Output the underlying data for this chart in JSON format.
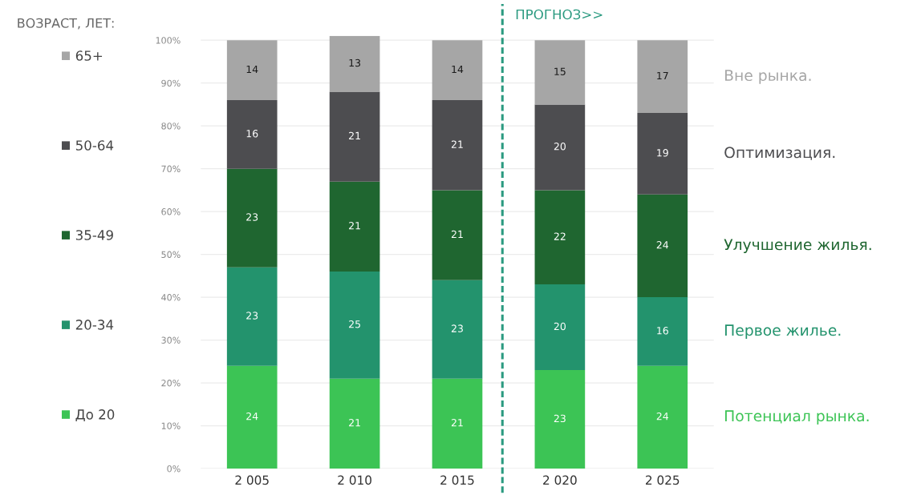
{
  "chart_data": {
    "type": "bar",
    "stacked": true,
    "x": [
      2005,
      2010,
      2015,
      2020,
      2025
    ],
    "xlim": [
      2002.5,
      2027.5
    ],
    "xticks": [
      {
        "value": 2005,
        "label": "2 005"
      },
      {
        "value": 2010,
        "label": "2 010"
      },
      {
        "value": 2015,
        "label": "2 015"
      },
      {
        "value": 2020,
        "label": "2 020"
      },
      {
        "value": 2025,
        "label": "2 025"
      }
    ],
    "series": [
      {
        "name": "До 20",
        "color": "#3cc455",
        "values": [
          24,
          21,
          21,
          23,
          24
        ]
      },
      {
        "name": "20-34",
        "color": "#23936d",
        "values": [
          23,
          25,
          23,
          20,
          16
        ]
      },
      {
        "name": "35-49",
        "color": "#1f6630",
        "values": [
          23,
          21,
          21,
          22,
          24
        ]
      },
      {
        "name": "50-64",
        "color": "#4d4d50",
        "values": [
          16,
          21,
          21,
          20,
          19
        ]
      },
      {
        "name": "65+",
        "color": "#a6a6a6",
        "values": [
          14,
          13,
          14,
          15,
          17
        ]
      }
    ],
    "ylim": [
      0,
      101
    ],
    "yticks": [
      {
        "value": 0,
        "label": "0%"
      },
      {
        "value": 10,
        "label": "10%"
      },
      {
        "value": 20,
        "label": "20%"
      },
      {
        "value": 30,
        "label": "30%"
      },
      {
        "value": 40,
        "label": "40%"
      },
      {
        "value": 50,
        "label": "50%"
      },
      {
        "value": 60,
        "label": "60%"
      },
      {
        "value": 70,
        "label": "70%"
      },
      {
        "value": 80,
        "label": "80%"
      },
      {
        "value": 90,
        "label": "90%"
      },
      {
        "value": 100,
        "label": "100%"
      }
    ],
    "grid": "y",
    "legend": "left",
    "legend_title": "ВОЗРАСТ, ЛЕТ:",
    "data_labels": true,
    "ref_lines": [
      {
        "axis": "x",
        "value": 2017.2,
        "label": "ПРОГНОЗ>>",
        "color": "#2b9a80",
        "line_style": "dashed"
      }
    ],
    "annotations": [
      "Вне рынка.",
      "Оптимизация.",
      "Улучшение жилья.",
      "Первое жилье.",
      "Потенциал рынка."
    ]
  }
}
